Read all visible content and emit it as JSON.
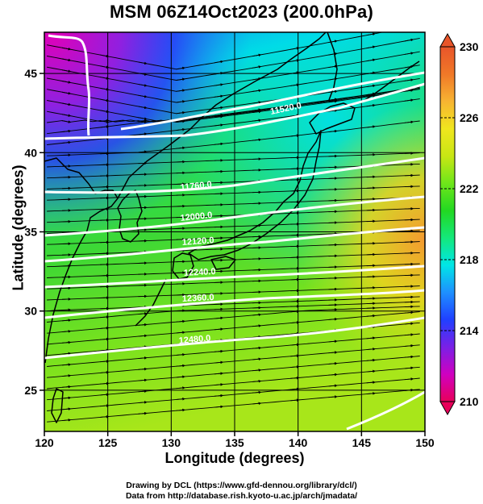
{
  "title": "MSM 06Z14Oct2023 (200.0hPa)",
  "x_axis": {
    "label": "Longitude (degrees)",
    "ticks": [
      120,
      125,
      130,
      135,
      140,
      145,
      150
    ],
    "range": [
      120,
      150
    ]
  },
  "y_axis": {
    "label": "Latitude  (degrees)",
    "ticks": [
      25,
      30,
      35,
      40,
      45
    ],
    "range": [
      22.4,
      47.6
    ]
  },
  "colorbar": {
    "range": [
      210,
      230
    ],
    "tick_labels": [
      "230",
      "226",
      "222",
      "218",
      "214",
      "210"
    ],
    "tick_values": [
      230,
      226,
      222,
      218,
      214,
      210
    ],
    "colors": [
      "#e8005a",
      "#d000c0",
      "#7a20e6",
      "#2040ff",
      "#1e90ff",
      "#00e6e6",
      "#14e87a",
      "#22d822",
      "#6ee61a",
      "#c8e614",
      "#f0e61e",
      "#f7b432",
      "#f07828",
      "#e8552a"
    ]
  },
  "contours": {
    "color": "#ffffff",
    "labels": [
      {
        "text": "11520.0"
      },
      {
        "text": "11760.0"
      },
      {
        "text": "12000.0"
      },
      {
        "text": "12120.0"
      },
      {
        "text": "12240.0"
      },
      {
        "text": "12360.0"
      },
      {
        "text": "12480.0"
      }
    ]
  },
  "credits": {
    "line1": "Drawing by DCL (https://www.gfd-dennou.org/library/dcl/)",
    "line2": "Data from http://database.rish.kyoto-u.ac.jp/arch/jmadata/"
  }
}
